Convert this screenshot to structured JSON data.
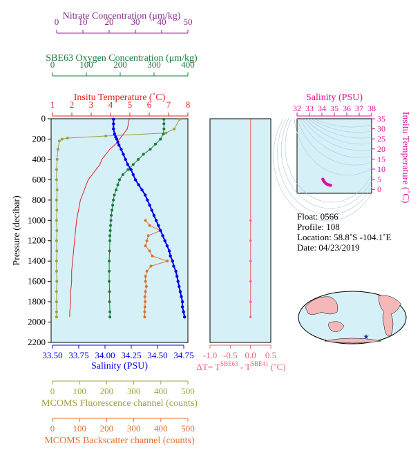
{
  "colors": {
    "bg": "#d6f0f8",
    "nitrate": "#8b2a8b",
    "oxygen": "#1a7a3a",
    "temperature": "#e0231f",
    "salinity": "#0000ee",
    "fluorescence": "#a0a040",
    "backscatter": "#e07030",
    "dt": "#f06070",
    "ts": "#e0109a"
  },
  "axes": {
    "nitrate": {
      "title": "Nitrate Concentration (μm/kg)",
      "ticks": [
        "0",
        "10",
        "20",
        "30",
        "40",
        "50"
      ]
    },
    "oxygen": {
      "title": "SBE63 Oxygen Concentration (μm/kg)",
      "ticks": [
        "0",
        "100",
        "200",
        "300",
        "400"
      ]
    },
    "temperature": {
      "title": "Insitu Temperature (˚C)",
      "ticks": [
        "1",
        "2",
        "3",
        "4",
        "5",
        "6",
        "7",
        "8"
      ]
    },
    "pressure": {
      "title": "Pressure (decibar)",
      "ticks": [
        "0",
        "200",
        "400",
        "600",
        "800",
        "1000",
        "1200",
        "1400",
        "1600",
        "1800",
        "2000",
        "2200"
      ]
    },
    "salinity": {
      "title": "Salinity (PSU)",
      "ticks": [
        "33.50",
        "33.75",
        "34.00",
        "34.25",
        "34.50",
        "34.75"
      ]
    },
    "fluorescence": {
      "title": "MCOMS Fluorescence channel (counts)",
      "ticks": [
        "0",
        "100",
        "200",
        "300",
        "400",
        "500"
      ]
    },
    "backscatter": {
      "title": "MCOMS Backscatter channel (counts)",
      "ticks": [
        "0",
        "100",
        "200",
        "300",
        "400",
        "500"
      ]
    },
    "dt": {
      "title_prefix": "ΔT= T",
      "sup1": "SBE63",
      "mid": " - T",
      "sup2": "SBE41",
      "suffix": " (˚C)",
      "ticks": [
        "-1.0",
        "-0.5",
        "0.0",
        "0.5"
      ]
    },
    "ts_salinity": {
      "title": "Salinity (PSU)",
      "ticks": [
        "32",
        "33",
        "34",
        "35",
        "36",
        "37",
        "38"
      ]
    },
    "ts_temperature": {
      "title": "Insitu Temperature (˚C)",
      "ticks": [
        "0",
        "5",
        "10",
        "15",
        "20",
        "25",
        "30",
        "35"
      ]
    }
  },
  "info": {
    "float": "Float:  0566",
    "profile": "Profile:  108",
    "location": "Location:  58.8˚S  -104.1˚E",
    "date": "Date:  04/23/2019"
  },
  "chart_data": [
    {
      "type": "line",
      "name": "profile",
      "ylim": [
        2200,
        0
      ],
      "series": [
        {
          "name": "Salinity (PSU)",
          "xlim": [
            33.5,
            34.75
          ],
          "pressure": [
            5,
            50,
            100,
            150,
            180,
            200,
            230,
            260,
            300,
            350,
            400,
            450,
            500,
            550,
            600,
            650,
            700,
            750,
            800,
            850,
            900,
            950,
            1000,
            1050,
            1100,
            1150,
            1200,
            1250,
            1300,
            1350,
            1400,
            1450,
            1500,
            1550,
            1600,
            1650,
            1700,
            1750,
            1800,
            1850,
            1900,
            1950
          ],
          "values": [
            34.07,
            34.07,
            34.07,
            34.08,
            34.09,
            34.1,
            34.11,
            34.12,
            34.14,
            34.16,
            34.18,
            34.2,
            34.23,
            34.25,
            34.27,
            34.3,
            34.33,
            34.36,
            34.38,
            34.4,
            34.42,
            34.44,
            34.46,
            34.48,
            34.5,
            34.52,
            34.54,
            34.56,
            34.58,
            34.59,
            34.61,
            34.62,
            34.64,
            34.65,
            34.66,
            34.67,
            34.68,
            34.69,
            34.7,
            34.7,
            34.71,
            34.72
          ]
        },
        {
          "name": "Insitu Temperature (˚C)",
          "xlim": [
            1,
            8
          ],
          "pressure": [
            5,
            50,
            100,
            150,
            200,
            250,
            300,
            350,
            400,
            450,
            500,
            550,
            600,
            650,
            700,
            750,
            800,
            850,
            900,
            950,
            1000,
            1100,
            1200,
            1300,
            1400,
            1500,
            1600,
            1700,
            1800,
            1900,
            1950
          ],
          "values": [
            5.0,
            4.95,
            4.9,
            4.7,
            4.5,
            4.3,
            4.0,
            3.8,
            3.6,
            3.5,
            3.3,
            3.1,
            2.9,
            2.8,
            2.7,
            2.6,
            2.5,
            2.45,
            2.4,
            2.35,
            2.3,
            2.25,
            2.2,
            2.15,
            2.1,
            2.05,
            2.05,
            2.0,
            2.0,
            1.95,
            1.95
          ]
        },
        {
          "name": "SBE63 Oxygen Concentration (μm/kg)",
          "xlim": [
            0,
            400
          ],
          "pressure": [
            5,
            50,
            100,
            150,
            200,
            250,
            300,
            350,
            400,
            450,
            500,
            550,
            600,
            650,
            700,
            750,
            800,
            850,
            900,
            950,
            1000,
            1050,
            1100,
            1150,
            1200,
            1300,
            1400,
            1500,
            1600,
            1700,
            1800,
            1900,
            1950
          ],
          "values": [
            330,
            330,
            330,
            328,
            320,
            305,
            290,
            270,
            255,
            240,
            225,
            210,
            200,
            195,
            190,
            185,
            182,
            180,
            178,
            176,
            175,
            174,
            173,
            172,
            172,
            171,
            170,
            170,
            170,
            171,
            171,
            172,
            172
          ]
        },
        {
          "name": "MCOMS Fluorescence channel (counts)",
          "xlim": [
            0,
            500
          ],
          "pressure": [
            5,
            100,
            140,
            170,
            190,
            200,
            220,
            300,
            400,
            500,
            600,
            700,
            800,
            900,
            1000,
            1100,
            1200,
            1300,
            1400,
            1500,
            1600,
            1700,
            1800,
            1900,
            1950
          ],
          "values": [
            470,
            450,
            420,
            200,
            60,
            40,
            30,
            25,
            22,
            20,
            20,
            22,
            20,
            21,
            20,
            21,
            20,
            21,
            20,
            20,
            21,
            20,
            20,
            20,
            20
          ]
        },
        {
          "name": "MCOMS Backscatter channel (counts)",
          "xlim": [
            0,
            500
          ],
          "pressure": [
            1000,
            1050,
            1100,
            1150,
            1200,
            1250,
            1300,
            1350,
            1400,
            1450,
            1500,
            1550,
            1600,
            1650,
            1700,
            1750,
            1800,
            1850,
            1900,
            1950
          ],
          "values": [
            345,
            360,
            400,
            355,
            350,
            345,
            360,
            370,
            425,
            365,
            350,
            345,
            345,
            348,
            345,
            343,
            344,
            343,
            342,
            342
          ]
        },
        {
          "name": "ΔT",
          "xlim": [
            -1.0,
            0.5
          ],
          "pressure": [
            5,
            200,
            400,
            600,
            800,
            1000,
            1200,
            1400,
            1600,
            1800,
            1950
          ],
          "values": [
            0.0,
            0.0,
            0.0,
            0.0,
            0.0,
            0.0,
            0.0,
            0.0,
            0.0,
            0.0,
            0.0
          ]
        }
      ]
    },
    {
      "type": "scatter",
      "name": "T-S diagram",
      "xlim": [
        32,
        38
      ],
      "ylim": [
        -2,
        35
      ],
      "x": [
        34.07,
        34.09,
        34.12,
        34.16,
        34.2,
        34.25,
        34.3,
        34.36,
        34.42,
        34.48,
        34.55,
        34.62,
        34.7
      ],
      "y": [
        5.0,
        4.8,
        4.4,
        4.0,
        3.7,
        3.3,
        3.0,
        2.7,
        2.5,
        2.35,
        2.2,
        2.05,
        1.95
      ]
    }
  ]
}
